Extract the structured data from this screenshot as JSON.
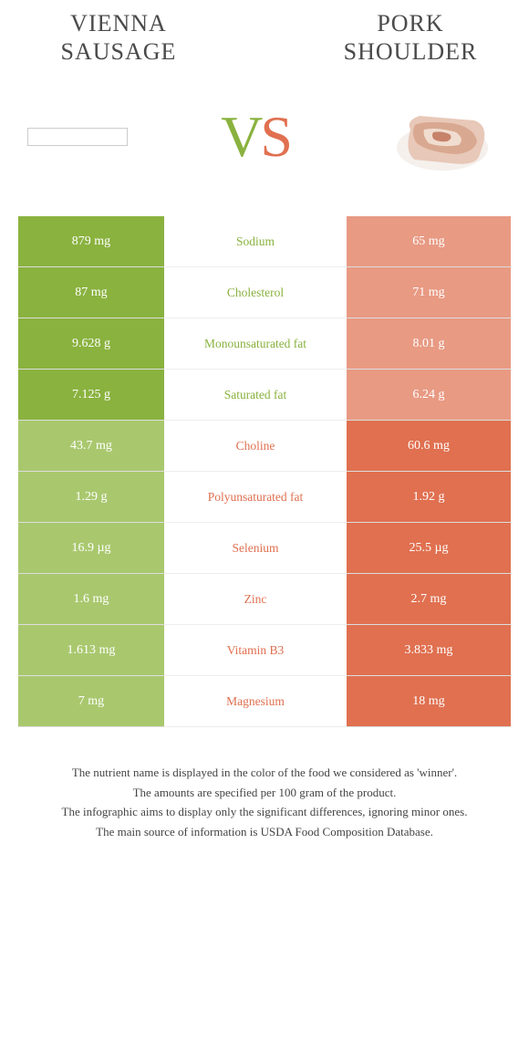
{
  "colors": {
    "green_win": "#8ab23f",
    "green_lose": "#a9c86e",
    "orange_win": "#e07050",
    "orange_lose": "#e89a83"
  },
  "left_title_line1": "VIENNA",
  "left_title_line2": "SAUSAGE",
  "right_title_line1": "PORK",
  "right_title_line2": "SHOULDER",
  "vs_v": "V",
  "vs_s": "S",
  "rows": [
    {
      "left": "879 mg",
      "mid": "Sodium",
      "right": "65 mg",
      "winner": "left"
    },
    {
      "left": "87 mg",
      "mid": "Cholesterol",
      "right": "71 mg",
      "winner": "left"
    },
    {
      "left": "9.628 g",
      "mid": "Monounsaturated fat",
      "right": "8.01 g",
      "winner": "left"
    },
    {
      "left": "7.125 g",
      "mid": "Saturated fat",
      "right": "6.24 g",
      "winner": "left"
    },
    {
      "left": "43.7 mg",
      "mid": "Choline",
      "right": "60.6 mg",
      "winner": "right"
    },
    {
      "left": "1.29 g",
      "mid": "Polyunsaturated fat",
      "right": "1.92 g",
      "winner": "right"
    },
    {
      "left": "16.9 µg",
      "mid": "Selenium",
      "right": "25.5 µg",
      "winner": "right"
    },
    {
      "left": "1.6 mg",
      "mid": "Zinc",
      "right": "2.7 mg",
      "winner": "right"
    },
    {
      "left": "1.613 mg",
      "mid": "Vitamin B3",
      "right": "3.833 mg",
      "winner": "right"
    },
    {
      "left": "7 mg",
      "mid": "Magnesium",
      "right": "18 mg",
      "winner": "right"
    }
  ],
  "footer": [
    "The nutrient name is displayed in the color of the food we considered as 'winner'.",
    "The amounts are specified per 100 gram of the product.",
    "The infographic aims to display only the significant differences, ignoring minor ones.",
    "The main source of information is USDA Food Composition Database."
  ]
}
